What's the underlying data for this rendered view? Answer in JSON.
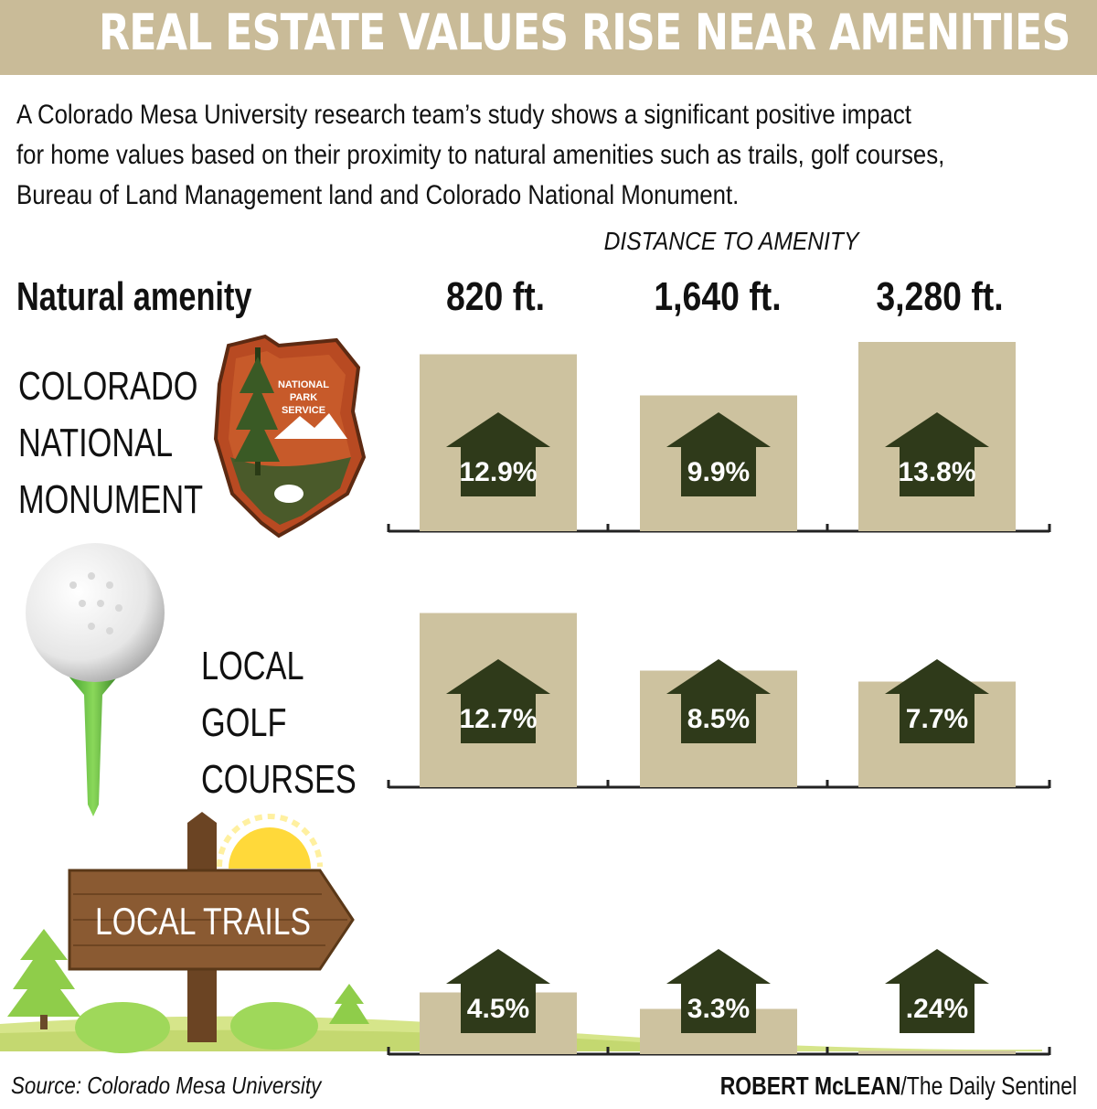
{
  "banner": {
    "title": "REAL ESTATE VALUES RISE NEAR AMENITIES"
  },
  "intro": {
    "lines": [
      "A Colorado Mesa University research team’s study shows a significant positive impact",
      "for home values based on their proximity to natural amenities such as trails, golf courses,",
      "Bureau of Land Management land and Colorado National Monument."
    ]
  },
  "colors": {
    "banner": "#c9bb98",
    "bar": "#cdc29f",
    "house": "#2f3a1a",
    "axis": "#222222"
  },
  "icons": [
    "national-park-service-arrowhead-icon",
    "golf-ball-on-tee-icon",
    "trail-sign-icon",
    "pine-tree-icon",
    "sun-icon"
  ],
  "chart_data": {
    "type": "bar",
    "title": "REAL ESTATE VALUES RISE NEAR AMENITIES",
    "xlabel": "DISTANCE TO AMENITY",
    "row_header": "Natural amenity",
    "categories": [
      "820 ft.",
      "1,640 ft.",
      "3,280 ft."
    ],
    "series": [
      {
        "name": "COLORADO NATIONAL MONUMENT",
        "label_lines": [
          "COLORADO",
          "NATIONAL",
          "MONUMENT"
        ],
        "values": [
          12.9,
          9.9,
          13.8
        ],
        "labels": [
          "12.9%",
          "9.9%",
          "13.8%"
        ]
      },
      {
        "name": "LOCAL GOLF COURSES",
        "label_lines": [
          "LOCAL",
          "GOLF",
          "COURSES"
        ],
        "values": [
          12.7,
          8.5,
          7.7
        ],
        "labels": [
          "12.7%",
          "8.5%",
          "7.7%"
        ]
      },
      {
        "name": "LOCAL TRAILS",
        "label_lines": [
          "LOCAL TRAILS"
        ],
        "values": [
          4.5,
          3.3,
          0.24
        ],
        "labels": [
          "4.5%",
          "3.3%",
          ".24%"
        ]
      }
    ],
    "units": "%",
    "ylim": [
      0,
      15
    ],
    "grid": false,
    "legend": "none"
  },
  "footer": {
    "source": "Source: Colorado Mesa University",
    "credit_name": "ROBERT McLEAN",
    "credit_outlet": "/The Daily Sentinel"
  },
  "illustration": {
    "nps_lines": [
      "NATIONAL",
      "PARK",
      "SERVICE"
    ]
  }
}
